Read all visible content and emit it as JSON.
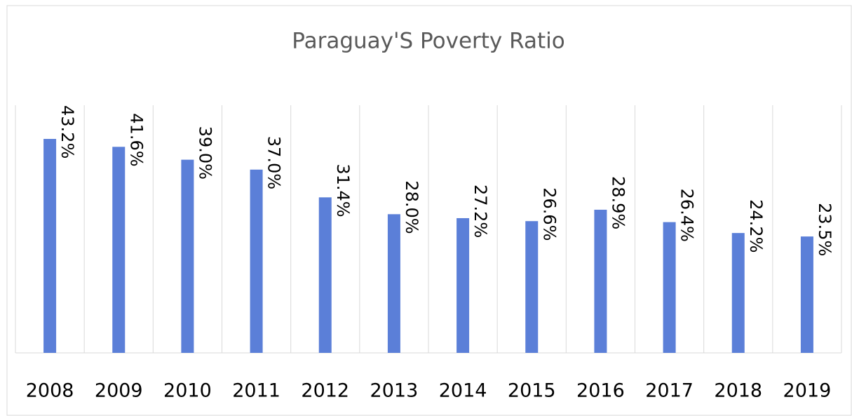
{
  "chart_data": {
    "type": "bar",
    "title": "Paraguay'S Poverty Ratio",
    "categories": [
      "2008",
      "2009",
      "2010",
      "2011",
      "2012",
      "2013",
      "2014",
      "2015",
      "2016",
      "2017",
      "2018",
      "2019"
    ],
    "values": [
      43.2,
      41.6,
      39.0,
      37.0,
      31.4,
      28.0,
      27.2,
      26.6,
      28.9,
      26.4,
      24.2,
      23.5
    ],
    "value_labels": [
      "43.2%",
      "41.6%",
      "39.0%",
      "37.0%",
      "31.4%",
      "28.0%",
      "27.2%",
      "26.6%",
      "28.9%",
      "26.4%",
      "24.2%",
      "23.5%"
    ],
    "color": "#5b7fd8",
    "ylim": [
      0,
      50
    ],
    "grid": true
  }
}
